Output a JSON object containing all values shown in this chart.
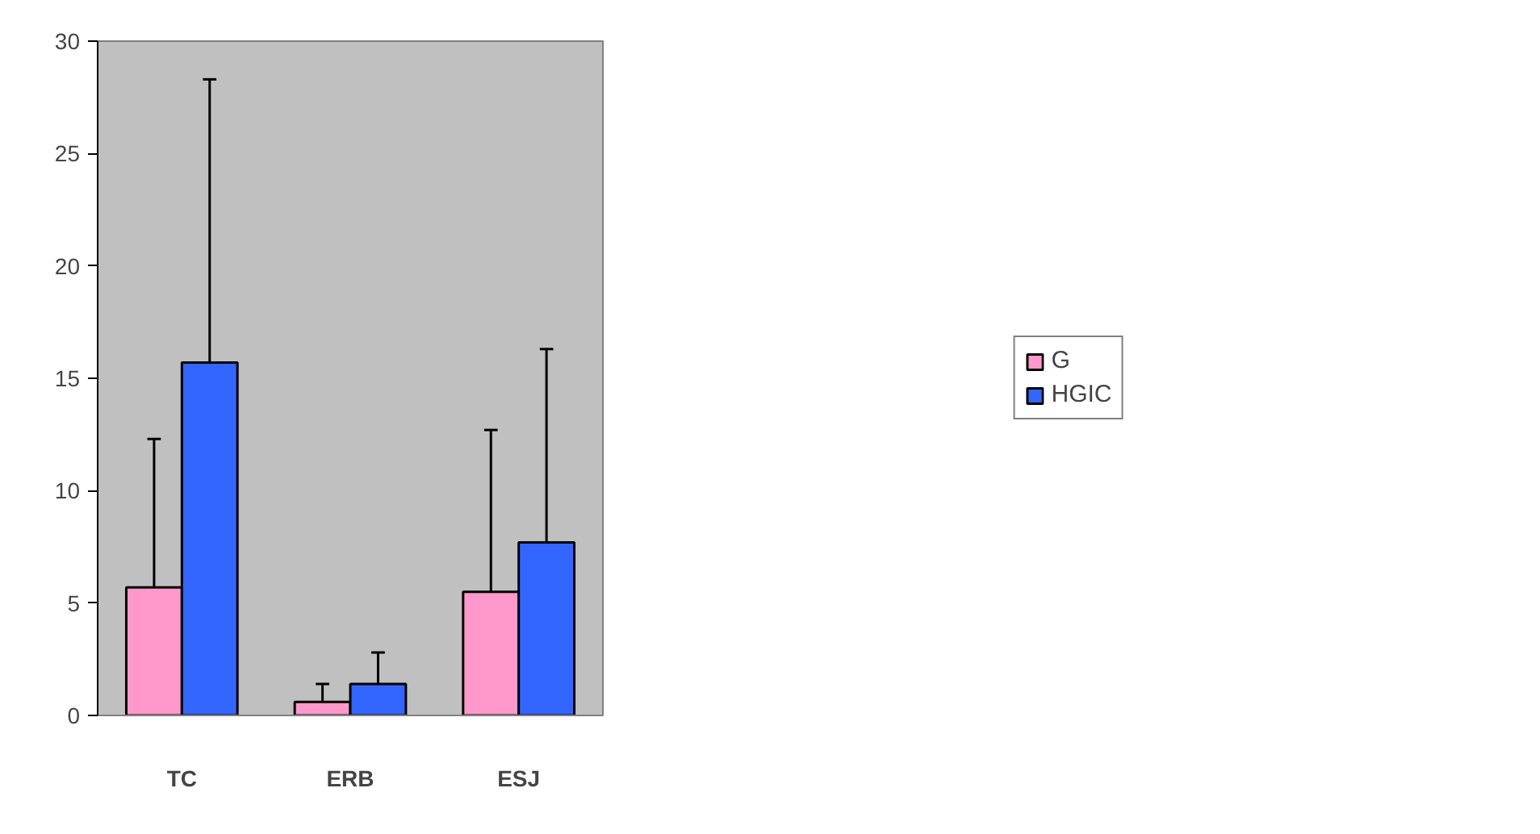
{
  "chart_data": {
    "type": "bar",
    "categories": [
      "TC",
      "ERB",
      "ESJ"
    ],
    "series": [
      {
        "name": "G",
        "color": "#ff99cc",
        "values": [
          5.7,
          0.6,
          5.5
        ],
        "errors": [
          [
            5.7,
            12.3
          ],
          [
            0.6,
            1.4
          ],
          [
            5.5,
            12.7
          ]
        ]
      },
      {
        "name": "HGIC",
        "color": "#3366ff",
        "values": [
          15.7,
          1.4,
          7.7
        ],
        "errors": [
          [
            15.7,
            28.3
          ],
          [
            1.4,
            2.8
          ],
          [
            7.7,
            16.3
          ]
        ]
      }
    ],
    "ylim": [
      0,
      30
    ],
    "yticks": [
      0,
      5,
      10,
      15,
      20,
      25,
      30
    ],
    "grid": false,
    "legend": "right"
  }
}
